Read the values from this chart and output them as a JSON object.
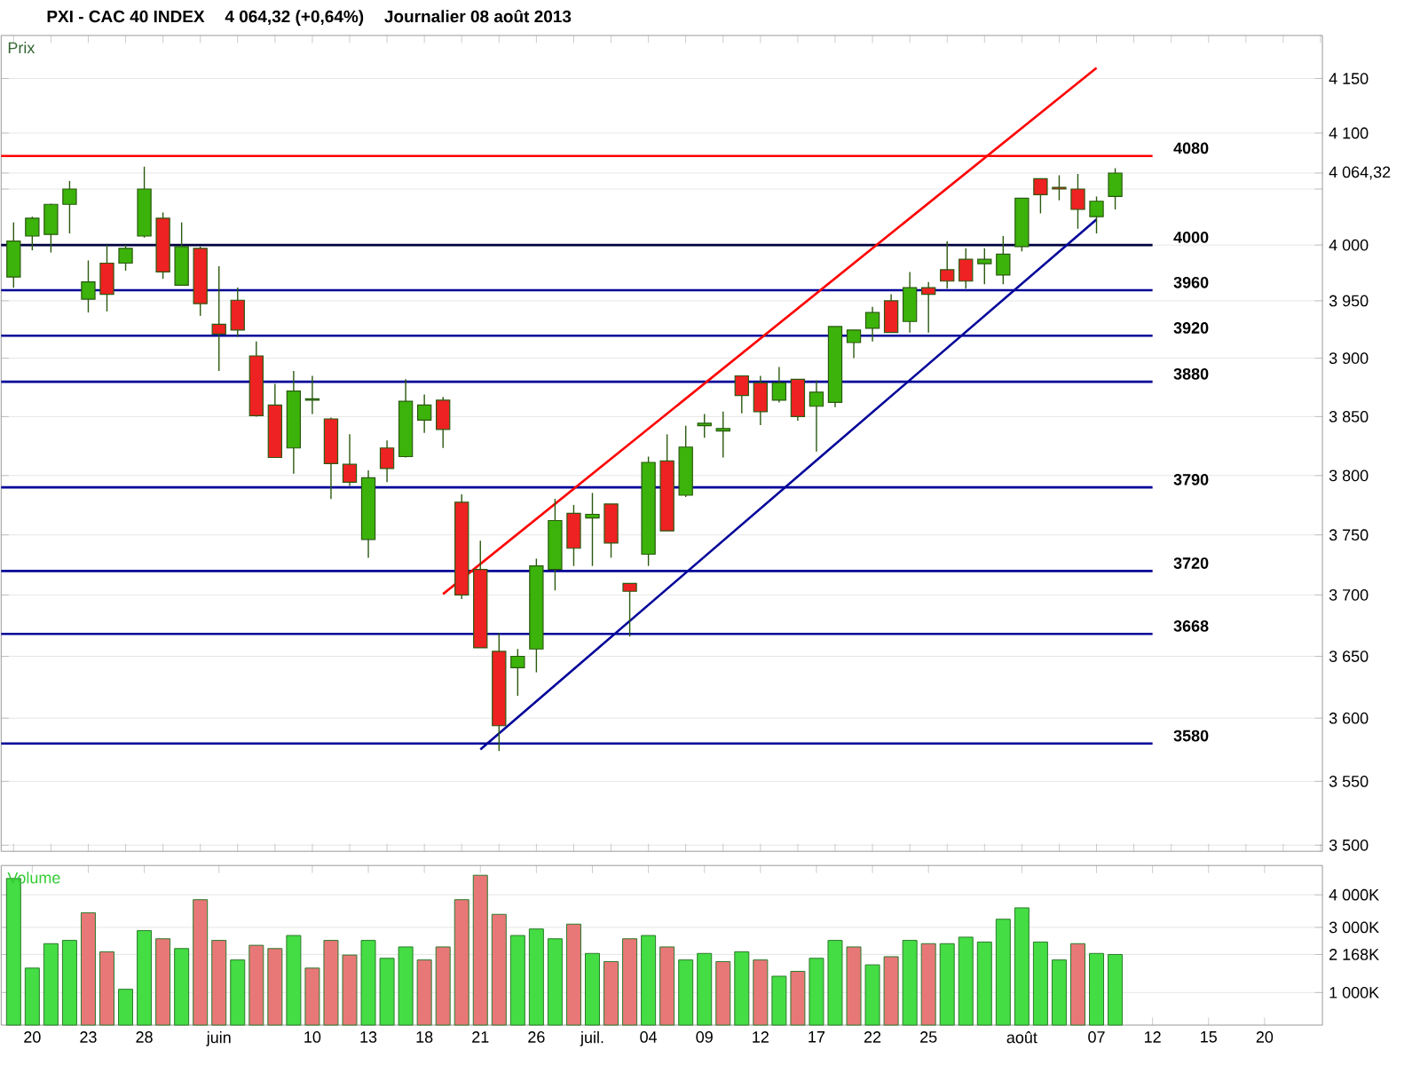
{
  "chart_data": [
    {
      "type": "candlestick",
      "title": "PXI - CAC 40 INDEX",
      "subtitle": "4 064,32 (+0,64%)",
      "annotations": [
        "Journalier  08 août 2013"
      ],
      "ylabel": "Prix",
      "categories": [
        null,
        null,
        null,
        null,
        null,
        null,
        null,
        null,
        null,
        null,
        null,
        null,
        null,
        null,
        null,
        null,
        null,
        null,
        null,
        null,
        null,
        null,
        null,
        null,
        null,
        null,
        null,
        null,
        null,
        null,
        null,
        null,
        null,
        null,
        null,
        null,
        null,
        null,
        null,
        null,
        null,
        null,
        null,
        null,
        null,
        null,
        null,
        null,
        null,
        null,
        null,
        null,
        null,
        null,
        null,
        null,
        null,
        null,
        null,
        null,
        null,
        null,
        null,
        null,
        null,
        null,
        null,
        null
      ],
      "ohlc": [
        [
          3971,
          4020,
          3962,
          4003
        ],
        [
          4008,
          4025,
          3995,
          4024
        ],
        [
          4009,
          4037,
          3993,
          4036
        ],
        [
          4036,
          4057,
          4010,
          4050
        ],
        [
          3952,
          3986,
          3940,
          3967
        ],
        [
          3984,
          4000,
          3941,
          3956
        ],
        [
          3984,
          4000,
          3977,
          3997
        ],
        [
          4008,
          4070,
          4006,
          4050
        ],
        [
          4024,
          4029,
          3970,
          3976
        ],
        [
          3964,
          4020,
          3964,
          3998
        ],
        [
          3997,
          3998,
          3937,
          3948
        ],
        [
          3930,
          3981,
          3889,
          3921
        ],
        [
          3951,
          3962,
          3919,
          3925
        ],
        [
          3902,
          3915,
          3850,
          3851
        ],
        [
          3860,
          3878,
          3815,
          3815
        ],
        [
          3823,
          3889,
          3801,
          3872
        ],
        [
          3864,
          3885,
          3852,
          3865
        ],
        [
          3848,
          3849,
          3780,
          3810
        ],
        [
          3809,
          3835,
          3791,
          3794
        ],
        [
          3746,
          3804,
          3731,
          3798
        ],
        [
          3823,
          3830,
          3794,
          3806
        ],
        [
          3816,
          3882,
          3815,
          3863
        ],
        [
          3847,
          3869,
          3836,
          3860
        ],
        [
          3864,
          3867,
          3823,
          3839
        ],
        [
          3777,
          3784,
          3697,
          3700
        ],
        [
          3721,
          3745,
          3657,
          3657
        ],
        [
          3654,
          3669,
          3574,
          3594
        ],
        [
          3641,
          3656,
          3618,
          3650
        ],
        [
          3656,
          3730,
          3637,
          3724
        ],
        [
          3721,
          3780,
          3704,
          3762
        ],
        [
          3768,
          3775,
          3724,
          3739
        ],
        [
          3764,
          3785,
          3724,
          3767
        ],
        [
          3776,
          3776,
          3731,
          3743
        ],
        [
          3710,
          3710,
          3666,
          3703
        ],
        [
          3734,
          3816,
          3724,
          3811
        ],
        [
          3812,
          3835,
          3753,
          3753
        ],
        [
          3783,
          3842,
          3782,
          3824
        ],
        [
          3842,
          3852,
          3832,
          3844
        ],
        [
          3838,
          3854,
          3815,
          3840
        ],
        [
          3885,
          3885,
          3853,
          3868
        ],
        [
          3879,
          3885,
          3843,
          3854
        ],
        [
          3864,
          3893,
          3862,
          3879
        ],
        [
          3882,
          3882,
          3846,
          3850
        ],
        [
          3859,
          3881,
          3820,
          3871
        ],
        [
          3862,
          3928,
          3858,
          3928
        ],
        [
          3914,
          3925,
          3900,
          3925
        ],
        [
          3926,
          3945,
          3915,
          3940
        ],
        [
          3950,
          3956,
          3923,
          3923
        ],
        [
          3932,
          3976,
          3923,
          3962
        ],
        [
          3962,
          3967,
          3923,
          3956
        ],
        [
          3978,
          4003,
          3961,
          3968
        ],
        [
          3987,
          3997,
          3961,
          3968
        ],
        [
          3983,
          3997,
          3965,
          3987
        ],
        [
          3973,
          4008,
          3965,
          3992
        ],
        [
          3998,
          4042,
          3994,
          4042
        ],
        [
          4059,
          4059,
          4028,
          4045
        ],
        [
          4051,
          4062,
          4040,
          4050
        ],
        [
          4050,
          4064,
          4014,
          4032
        ],
        [
          4025,
          4043,
          4010,
          4039
        ],
        [
          4043,
          4069,
          4032,
          4064.32
        ],
        null,
        null,
        null,
        null,
        null,
        null,
        null,
        null
      ],
      "series": [
        {
          "type": "line",
          "values": [
            null,
            null,
            null,
            null,
            null,
            null,
            null,
            null,
            null,
            null,
            null,
            null,
            null,
            null,
            null,
            null,
            null,
            null,
            null,
            null,
            null,
            null,
            null,
            3701,
            null,
            null,
            null,
            null,
            null,
            null,
            null,
            null,
            null,
            null,
            null,
            null,
            null,
            null,
            null,
            null,
            null,
            null,
            null,
            null,
            null,
            null,
            null,
            null,
            null,
            null,
            null,
            null,
            null,
            null,
            null,
            null,
            null,
            null,
            4160,
            null,
            null,
            null,
            null,
            null,
            null,
            null,
            null,
            null
          ],
          "color": "#ff0000"
        },
        {
          "type": "line",
          "values": [
            null,
            null,
            null,
            null,
            null,
            null,
            null,
            null,
            null,
            null,
            null,
            null,
            null,
            null,
            null,
            null,
            null,
            null,
            null,
            null,
            null,
            null,
            null,
            null,
            null,
            3575,
            null,
            null,
            null,
            null,
            null,
            null,
            null,
            null,
            null,
            null,
            null,
            null,
            null,
            null,
            null,
            null,
            null,
            null,
            null,
            null,
            null,
            null,
            null,
            null,
            null,
            null,
            null,
            null,
            null,
            null,
            null,
            null,
            4022,
            null,
            null,
            null,
            null,
            null,
            null,
            null,
            null,
            null
          ],
          "color": "#000099"
        }
      ],
      "ref_lines": [
        {
          "axis": "y",
          "value": 4080,
          "label": "4080",
          "color": "#ff0000"
        },
        {
          "axis": "y",
          "value": 4000,
          "label": "4000",
          "color": "#000040"
        },
        {
          "axis": "y",
          "value": 3960,
          "label": "3960",
          "color": "#000099"
        },
        {
          "axis": "y",
          "value": 3920,
          "label": "3920",
          "color": "#000099"
        },
        {
          "axis": "y",
          "value": 3880,
          "label": "3880",
          "color": "#000099"
        },
        {
          "axis": "y",
          "value": 3790,
          "label": "3790",
          "color": "#000099"
        },
        {
          "axis": "y",
          "value": 3720,
          "label": "3720",
          "color": "#000099"
        },
        {
          "axis": "y",
          "value": 3668,
          "label": "3668",
          "color": "#000099"
        },
        {
          "axis": "y",
          "value": 3580,
          "label": "3580",
          "color": "#000099"
        }
      ],
      "log": true,
      "ylim": [
        3495,
        4190
      ],
      "yticks": [
        {
          "value": 3500,
          "label": "3 500"
        },
        {
          "value": 3550,
          "label": "3 550"
        },
        {
          "value": 3600,
          "label": "3 600"
        },
        {
          "value": 3650,
          "label": "3 650"
        },
        {
          "value": 3700,
          "label": "3 700"
        },
        {
          "value": 3750,
          "label": "3 750"
        },
        {
          "value": 3800,
          "label": "3 800"
        },
        {
          "value": 3850,
          "label": "3 850"
        },
        {
          "value": 3900,
          "label": "3 900"
        },
        {
          "value": 3950,
          "label": "3 950"
        },
        {
          "value": 4000,
          "label": "4 000"
        },
        {
          "value": 4050,
          "label": null
        },
        {
          "value": 4064.32,
          "label": "4 064,32"
        },
        {
          "value": 4100,
          "label": "4 100"
        },
        {
          "value": 4150,
          "label": "4 150"
        }
      ],
      "grid": "y",
      "tick_labels": "y"
    },
    {
      "type": "bar",
      "title": "Volume",
      "categories": [
        null,
        "20",
        null,
        null,
        "23",
        null,
        null,
        "28",
        null,
        null,
        null,
        "juin",
        null,
        null,
        null,
        null,
        "10",
        null,
        null,
        "13",
        null,
        null,
        "18",
        null,
        null,
        "21",
        null,
        null,
        "26",
        null,
        null,
        "juil.",
        null,
        null,
        "04",
        null,
        null,
        "09",
        null,
        null,
        "12",
        null,
        null,
        "17",
        null,
        null,
        "22",
        null,
        null,
        "25",
        null,
        null,
        null,
        null,
        "août",
        null,
        null,
        null,
        "07",
        null,
        null,
        "12",
        null,
        null,
        "15",
        null,
        null,
        "20"
      ],
      "values": [
        4500,
        1750,
        2500,
        2600,
        3450,
        2250,
        1100,
        2900,
        2650,
        2350,
        3850,
        2600,
        2000,
        2450,
        2350,
        2750,
        1750,
        2600,
        2150,
        2600,
        2050,
        2400,
        2000,
        2400,
        3850,
        4600,
        3400,
        2750,
        2950,
        2650,
        3100,
        2200,
        1950,
        2650,
        2750,
        2400,
        2000,
        2200,
        1950,
        2250,
        2000,
        1500,
        1650,
        2050,
        2600,
        2400,
        1850,
        2100,
        2600,
        2500,
        2500,
        2700,
        2550,
        3250,
        3600,
        2550,
        2000,
        2500,
        2200,
        2168,
        null,
        null,
        null,
        null,
        null,
        null,
        null,
        null
      ],
      "colors": [
        "#44dd44",
        "#44dd44",
        "#44dd44",
        "#44dd44",
        "#e87878",
        "#e87878",
        "#44dd44",
        "#44dd44",
        "#e87878",
        "#44dd44",
        "#e87878",
        "#e87878",
        "#44dd44",
        "#e87878",
        "#e87878",
        "#44dd44",
        "#e87878",
        "#e87878",
        "#e87878",
        "#44dd44",
        "#44dd44",
        "#44dd44",
        "#e87878",
        "#e87878",
        "#e87878",
        "#e87878",
        "#e87878",
        "#44dd44",
        "#44dd44",
        "#44dd44",
        "#e87878",
        "#44dd44",
        "#e87878",
        "#e87878",
        "#44dd44",
        "#e87878",
        "#44dd44",
        "#44dd44",
        "#e87878",
        "#44dd44",
        "#e87878",
        "#44dd44",
        "#e87878",
        "#44dd44",
        "#44dd44",
        "#e87878",
        "#44dd44",
        "#e87878",
        "#44dd44",
        "#e87878",
        "#44dd44",
        "#44dd44",
        "#44dd44",
        "#44dd44",
        "#44dd44",
        "#44dd44",
        "#44dd44",
        "#e87878",
        "#44dd44",
        "#44dd44",
        null,
        null,
        null,
        null,
        null,
        null,
        null,
        null
      ],
      "ylim": [
        0,
        4900
      ],
      "yticks": [
        {
          "value": 1000,
          "label": "1 000K"
        },
        {
          "value": 2168,
          "label": "2 168K"
        },
        {
          "value": 3000,
          "label": "3 000K"
        },
        {
          "value": 4000,
          "label": "4 000K"
        }
      ],
      "grid": "y"
    }
  ]
}
